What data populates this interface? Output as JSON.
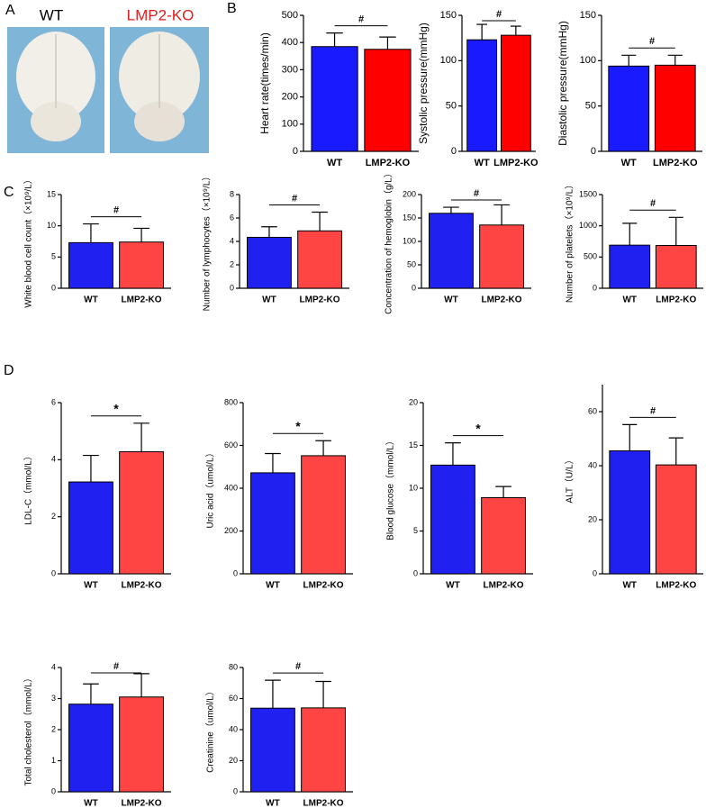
{
  "panel_labels": [
    "A",
    "B",
    "C",
    "D"
  ],
  "photo": {
    "labels": [
      "WT",
      "LMP2-KO"
    ]
  },
  "chart_data": [
    {
      "type": "bar",
      "ylabel": "Heart rate(times/min)",
      "categories": [
        "WT",
        "LMP2-KO"
      ],
      "values": [
        385,
        375
      ],
      "errors": [
        50,
        45
      ],
      "colors": [
        "#1a1aff",
        "#ff0000"
      ],
      "ylim": [
        0,
        500
      ],
      "yticks": [
        0,
        100,
        200,
        300,
        400,
        500
      ],
      "annotation": "#"
    },
    {
      "type": "bar",
      "ylabel": "Systolic pressure(mmHg)",
      "categories": [
        "WT",
        "LMP2-KO"
      ],
      "values": [
        123,
        128
      ],
      "errors": [
        17,
        10
      ],
      "colors": [
        "#1a1aff",
        "#ff0000"
      ],
      "ylim": [
        0,
        150
      ],
      "yticks": [
        0,
        50,
        100,
        150
      ],
      "annotation": "#"
    },
    {
      "type": "bar",
      "ylabel": "Diastolic pressure(mmHg)",
      "categories": [
        "WT",
        "LMP2-KO"
      ],
      "values": [
        94,
        95
      ],
      "errors": [
        12,
        11
      ],
      "colors": [
        "#1a1aff",
        "#ff0000"
      ],
      "ylim": [
        0,
        150
      ],
      "yticks": [
        0,
        50,
        100,
        150
      ],
      "annotation": "#"
    },
    {
      "type": "bar",
      "ylabel": "White blood cell count（×10⁹/L）",
      "categories": [
        "WT",
        "LMP2-KO"
      ],
      "values": [
        7.3,
        7.4
      ],
      "errors": [
        3.0,
        2.2
      ],
      "colors": [
        "#2020f0",
        "#ff4444"
      ],
      "ylim": [
        0,
        15
      ],
      "yticks": [
        0,
        5,
        10,
        15
      ],
      "annotation": "#"
    },
    {
      "type": "bar",
      "ylabel": "Number of lymphocytes（×10⁹/L）",
      "categories": [
        "WT",
        "LMP2-KO"
      ],
      "values": [
        4.35,
        4.9
      ],
      "errors": [
        0.9,
        1.6
      ],
      "colors": [
        "#2020f0",
        "#ff4444"
      ],
      "ylim": [
        0,
        8
      ],
      "yticks": [
        0,
        2,
        4,
        6,
        8
      ],
      "annotation": "#"
    },
    {
      "type": "bar",
      "ylabel": "Concentration of hemoglobin（g/L）",
      "categories": [
        "WT",
        "LMP2-KO"
      ],
      "values": [
        160,
        135
      ],
      "errors": [
        13,
        43
      ],
      "colors": [
        "#2020f0",
        "#ff4444"
      ],
      "ylim": [
        0,
        200
      ],
      "yticks": [
        0,
        50,
        100,
        150,
        200
      ],
      "annotation": "#"
    },
    {
      "type": "bar",
      "ylabel": "Number of platelets（×10⁹/L）",
      "categories": [
        "WT",
        "LMP2-KO"
      ],
      "values": [
        690,
        685
      ],
      "errors": [
        350,
        450
      ],
      "colors": [
        "#2020f0",
        "#ff4444"
      ],
      "ylim": [
        0,
        1500
      ],
      "yticks": [
        0,
        500,
        1000,
        1500
      ],
      "annotation": "#"
    },
    {
      "type": "bar",
      "ylabel": "LDL-C（mmol/L）",
      "categories": [
        "WT",
        "LMP2-KO"
      ],
      "values": [
        3.22,
        4.28
      ],
      "errors": [
        0.93,
        1.0
      ],
      "colors": [
        "#2020f0",
        "#ff4444"
      ],
      "ylim": [
        0,
        6
      ],
      "yticks": [
        0,
        2,
        4,
        6
      ],
      "annotation": "*"
    },
    {
      "type": "bar",
      "ylabel": "Uric acid（umol/L）",
      "categories": [
        "WT",
        "LMP2-KO"
      ],
      "values": [
        472,
        552
      ],
      "errors": [
        90,
        70
      ],
      "colors": [
        "#2020f0",
        "#ff4444"
      ],
      "ylim": [
        0,
        800
      ],
      "yticks": [
        0,
        200,
        400,
        600,
        800
      ],
      "annotation": "*"
    },
    {
      "type": "bar",
      "ylabel": "Blood glucose（mmol/L）",
      "categories": [
        "WT",
        "LMP2-KO"
      ],
      "values": [
        12.7,
        8.9
      ],
      "errors": [
        2.6,
        1.3
      ],
      "colors": [
        "#2020f0",
        "#ff4444"
      ],
      "ylim": [
        0,
        20
      ],
      "yticks": [
        0,
        5,
        10,
        15,
        20
      ],
      "annotation": "*"
    },
    {
      "type": "bar",
      "ylabel": "ALT（U/L）",
      "categories": [
        "WT",
        "LMP2-KO"
      ],
      "values": [
        45.5,
        40.3
      ],
      "errors": [
        9.7,
        10
      ],
      "colors": [
        "#2020f0",
        "#ff4444"
      ],
      "ylim": [
        0,
        70
      ],
      "yticks": [
        0,
        20,
        40,
        60
      ],
      "annotation": "#"
    },
    {
      "type": "bar",
      "ylabel": "Total cholesterol（mmol/L）",
      "categories": [
        "WT",
        "LMP2-KO"
      ],
      "values": [
        2.82,
        3.05
      ],
      "errors": [
        0.65,
        0.75
      ],
      "colors": [
        "#2020f0",
        "#ff4444"
      ],
      "ylim": [
        0,
        4
      ],
      "yticks": [
        0,
        1,
        2,
        3,
        4
      ],
      "annotation": "#"
    },
    {
      "type": "bar",
      "ylabel": "Creatinine（umol/L）",
      "categories": [
        "WT",
        "LMP2-KO"
      ],
      "values": [
        53.8,
        54
      ],
      "errors": [
        18,
        17
      ],
      "colors": [
        "#2020f0",
        "#ff4444"
      ],
      "ylim": [
        0,
        80
      ],
      "yticks": [
        0,
        20,
        40,
        60,
        80
      ],
      "annotation": "#"
    }
  ]
}
